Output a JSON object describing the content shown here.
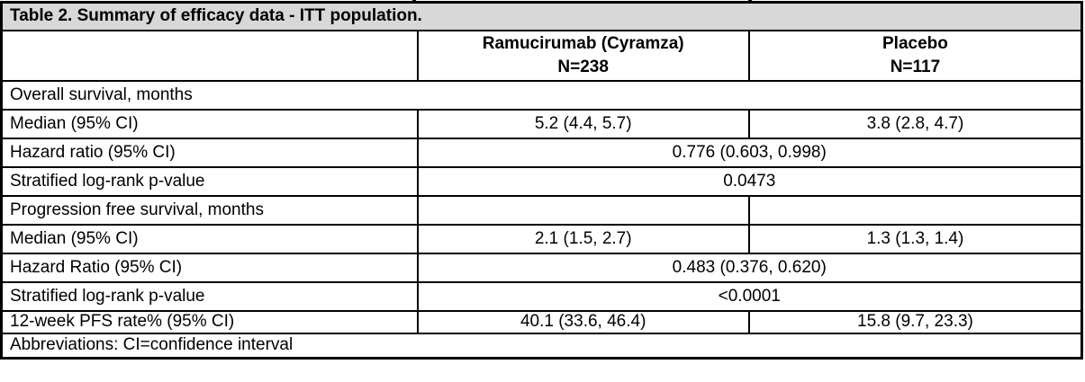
{
  "title": "Table 2. Summary of efficacy data - ITT population.",
  "columns": {
    "treatment": {
      "line1": "Ramucirumab (Cyramza)",
      "line2": "N=238"
    },
    "placebo": {
      "line1": "Placebo",
      "line2": "N=117"
    }
  },
  "sections": [
    {
      "header": "Overall survival, months",
      "rows": [
        {
          "label": "Median (95% CI)",
          "treatment": "5.2 (4.4, 5.7)",
          "placebo": "3.8 (2.8, 4.7)"
        },
        {
          "label": "Hazard ratio (95% CI)",
          "combined": "0.776 (0.603, 0.998)"
        },
        {
          "label": "Stratified log-rank p-value",
          "combined": "0.0473"
        }
      ]
    },
    {
      "header": "Progression free survival, months",
      "rows": [
        {
          "label": "Median (95% CI)",
          "treatment": "2.1 (1.5, 2.7)",
          "placebo": "1.3 (1.3, 1.4)"
        },
        {
          "label": "Hazard Ratio (95% CI)",
          "combined": "0.483 (0.376, 0.620)"
        },
        {
          "label": "Stratified log-rank p-value",
          "combined": "<0.0001"
        },
        {
          "label": "12-week PFS rate% (95% CI)",
          "treatment": "40.1 (33.6, 46.4)",
          "placebo": "15.8 (9.7, 23.3)"
        }
      ]
    }
  ],
  "footer": "Abbreviations: CI=confidence interval",
  "colors": {
    "title_bg": "#d8d8d8",
    "border": "#000000",
    "background": "#ffffff",
    "text": "#000000"
  }
}
